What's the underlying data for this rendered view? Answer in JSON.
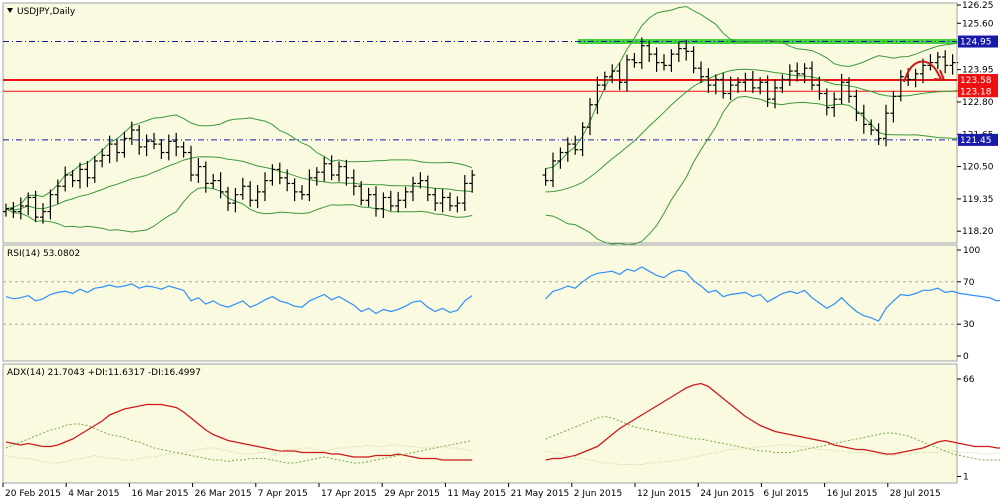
{
  "colors": {
    "background": "#fafae0",
    "candles": "#000000",
    "bollinger": "#3a9a3a",
    "resistance_green": "#22cc22",
    "support_red": "#ee1111",
    "blue_level": "#1a1aa8",
    "rsi_line": "#2f8fff",
    "adx_line": "#cc1a1a",
    "plus_di": "#7aaa4a",
    "minus_di": "#c8c890",
    "arrow": "#cc1a1a",
    "highlight_label": "#1a1aa8"
  },
  "chart_data": [
    {
      "type": "candlestick",
      "title": "USDJPY,Daily",
      "symbol": "USDJPY",
      "timeframe": "Daily",
      "ylim": [
        118.0,
        126.4
      ],
      "y_ticks": [
        "126.25",
        "125.60",
        "124.95",
        "123.95",
        "123.58",
        "123.18",
        "122.80",
        "121.65",
        "121.45",
        "120.50",
        "119.35",
        "118.20"
      ],
      "x_tick_labels": [
        "20 Feb 2015",
        "4 Mar 2015",
        "16 Mar 2015",
        "26 Mar 2015",
        "7 Apr 2015",
        "17 Apr 2015",
        "29 Apr 2015",
        "11 May 2015",
        "21 May 2015",
        "2 Jun 2015",
        "12 Jun 2015",
        "24 Jun 2015",
        "6 Jul 2015",
        "16 Jul 2015",
        "28 Jul 2015"
      ],
      "levels": [
        {
          "value": 124.95,
          "label": "124.95",
          "style": "green-band"
        },
        {
          "value": 123.58,
          "label": "123.58",
          "style": "red-solid"
        },
        {
          "value": 123.18,
          "label": "123.18",
          "style": "red-thin"
        },
        {
          "value": 121.45,
          "label": "121.45",
          "style": "blue-dashdot"
        }
      ],
      "closes": [
        119.0,
        118.9,
        119.1,
        119.4,
        118.7,
        118.9,
        119.5,
        119.8,
        120.2,
        120.0,
        120.4,
        120.1,
        120.7,
        120.9,
        121.3,
        121.0,
        121.5,
        121.8,
        121.2,
        121.4,
        121.3,
        121.0,
        121.4,
        121.2,
        121.0,
        120.2,
        120.5,
        119.9,
        120.0,
        119.6,
        119.2,
        119.5,
        119.8,
        119.3,
        119.6,
        120.0,
        120.4,
        120.1,
        119.9,
        119.6,
        119.5,
        120.1,
        120.3,
        120.6,
        120.2,
        120.5,
        120.1,
        119.8,
        119.3,
        119.5,
        119.0,
        119.4,
        119.1,
        119.3,
        119.6,
        119.9,
        120.0,
        119.5,
        119.2,
        119.4,
        119.1,
        119.2,
        119.9,
        120.2,
        120.0,
        120.7,
        121.0,
        121.3,
        121.1,
        121.9,
        122.7,
        123.4,
        123.7,
        123.9,
        123.5,
        124.3,
        124.2,
        124.8,
        124.5,
        124.2,
        124.1,
        124.5,
        124.7,
        124.6,
        124.0,
        123.7,
        123.4,
        123.6,
        123.1,
        123.4,
        123.5,
        123.6,
        123.3,
        123.5,
        122.9,
        123.3,
        123.6,
        123.9,
        123.8,
        124.0,
        123.4,
        123.1,
        122.6,
        122.9,
        123.5,
        123.0,
        122.4,
        122.0,
        121.8,
        121.5,
        122.4,
        123.0,
        123.7,
        123.6,
        123.8,
        124.1,
        124.2,
        124.4,
        124.1,
        124.2,
        124.0,
        123.9,
        123.8,
        123.7,
        123.6,
        123.4,
        123.8
      ],
      "panes": [
        "price",
        "rsi",
        "adx"
      ]
    },
    {
      "type": "line",
      "title": "RSI(14) 53.0802",
      "name": "RSI(14)",
      "current_value": 53.0802,
      "ylim": [
        0,
        100
      ],
      "y_ticks": [
        "100",
        "70",
        "30",
        "0"
      ],
      "levels": [
        70,
        30
      ],
      "values": [
        56,
        54,
        55,
        57,
        52,
        54,
        58,
        60,
        61,
        59,
        63,
        60,
        64,
        65,
        67,
        65,
        66,
        68,
        64,
        66,
        65,
        63,
        66,
        64,
        62,
        52,
        55,
        49,
        52,
        48,
        46,
        49,
        52,
        46,
        49,
        53,
        56,
        52,
        50,
        47,
        46,
        52,
        55,
        58,
        53,
        56,
        52,
        48,
        42,
        45,
        40,
        44,
        42,
        44,
        47,
        51,
        52,
        46,
        42,
        45,
        41,
        43,
        52,
        57,
        54,
        61,
        63,
        66,
        64,
        70,
        75,
        78,
        79,
        80,
        77,
        82,
        80,
        84,
        80,
        76,
        74,
        79,
        81,
        79,
        71,
        66,
        60,
        62,
        56,
        58,
        59,
        60,
        56,
        58,
        51,
        55,
        59,
        61,
        59,
        62,
        55,
        50,
        45,
        49,
        55,
        48,
        42,
        38,
        36,
        33,
        45,
        52,
        58,
        57,
        59,
        62,
        62,
        64,
        60,
        61,
        59,
        58,
        57,
        56,
        55,
        52,
        53
      ]
    },
    {
      "type": "line",
      "title": "ADX(14) 21.7043 +DI:11.6317 -DI:16.4997",
      "name": "ADX(14)",
      "current_value": 21.7043,
      "plus_di_current": 11.6317,
      "minus_di_current": 16.4997,
      "ylim": [
        0,
        70
      ],
      "y_ticks": [
        "66",
        "1"
      ],
      "series": [
        {
          "name": "ADX(14)",
          "values": [
            24,
            23,
            22,
            23,
            22,
            21,
            21,
            22,
            24,
            26,
            29,
            32,
            35,
            38,
            42,
            44,
            46,
            47,
            48,
            49,
            49,
            49,
            48,
            47,
            44,
            40,
            36,
            32,
            29,
            27,
            25,
            24,
            23,
            22,
            21,
            20,
            19,
            18,
            18,
            18,
            17,
            17,
            17,
            17,
            16,
            16,
            15,
            14,
            14,
            14,
            15,
            15,
            15,
            16,
            15,
            14,
            13,
            13,
            13,
            12,
            12,
            12,
            12,
            12,
            12,
            13,
            13,
            14,
            15,
            17,
            19,
            21,
            25,
            29,
            33,
            36,
            39,
            42,
            45,
            48,
            51,
            54,
            57,
            60,
            62,
            63,
            61,
            57,
            53,
            49,
            45,
            41,
            38,
            35,
            33,
            31,
            30,
            29,
            28,
            27,
            26,
            25,
            24,
            22,
            21,
            20,
            19,
            19,
            18,
            17,
            16,
            16,
            17,
            18,
            19,
            20,
            22,
            24,
            25,
            24,
            23,
            22,
            21,
            21,
            21,
            20,
            20
          ]
        },
        {
          "name": "+DI",
          "values": [
            20,
            22,
            24,
            26,
            28,
            30,
            32,
            33,
            35,
            36,
            36,
            35,
            33,
            31,
            29,
            28,
            27,
            25,
            24,
            22,
            20,
            19,
            18,
            17,
            16,
            15,
            14,
            13,
            12,
            12,
            11,
            12,
            12,
            13,
            13,
            13,
            12,
            11,
            10,
            10,
            11,
            12,
            13,
            14,
            13,
            12,
            11,
            10,
            10,
            11,
            12,
            13,
            14,
            15,
            16,
            17,
            18,
            19,
            20,
            21,
            22,
            23,
            24,
            25,
            26,
            28,
            30,
            32,
            34,
            36,
            38,
            40,
            41,
            40,
            38,
            36,
            34,
            33,
            32,
            31,
            30,
            29,
            28,
            27,
            26,
            26,
            25,
            24,
            23,
            22,
            21,
            20,
            19,
            18,
            18,
            17,
            17,
            17,
            18,
            19,
            20,
            21,
            22,
            23,
            24,
            25,
            26,
            27,
            28,
            29,
            30,
            30,
            29,
            28,
            26,
            24,
            22,
            20,
            18,
            16,
            15,
            14,
            13,
            12,
            12,
            12,
            12
          ]
        },
        {
          "name": "-DI",
          "values": [
            15,
            14,
            13,
            13,
            12,
            11,
            10,
            10,
            11,
            12,
            13,
            14,
            15,
            14,
            13,
            13,
            12,
            12,
            13,
            14,
            14,
            15,
            16,
            16,
            17,
            18,
            19,
            20,
            20,
            19,
            18,
            17,
            16,
            16,
            17,
            17,
            18,
            18,
            19,
            19,
            20,
            20,
            19,
            18,
            19,
            20,
            20,
            21,
            21,
            22,
            21,
            21,
            22,
            22,
            21,
            21,
            20,
            20,
            21,
            21,
            20,
            20,
            19,
            18,
            18,
            17,
            16,
            15,
            14,
            13,
            12,
            11,
            10,
            10,
            9,
            9,
            9,
            9,
            10,
            10,
            11,
            11,
            12,
            13,
            14,
            15,
            16,
            17,
            18,
            19,
            19,
            20,
            20,
            21,
            21,
            22,
            22,
            22,
            21,
            21,
            20,
            19,
            19,
            18,
            18,
            17,
            17,
            17,
            16,
            16,
            15,
            15,
            16,
            16,
            17,
            17,
            17,
            17,
            18,
            18,
            17,
            17,
            17,
            16,
            16,
            17,
            16
          ]
        }
      ]
    }
  ]
}
